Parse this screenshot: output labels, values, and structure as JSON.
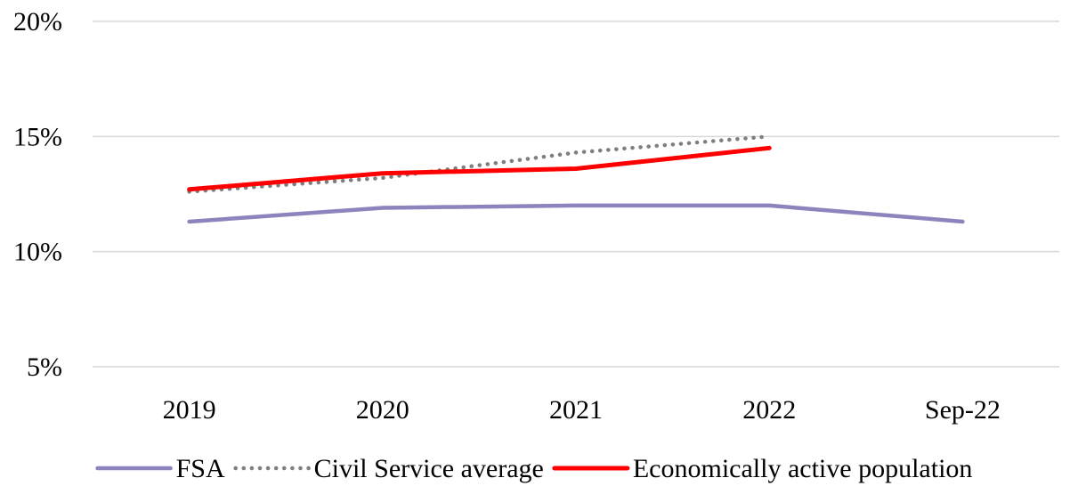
{
  "chart_data": {
    "type": "line",
    "categories": [
      "2019",
      "2020",
      "2021",
      "2022",
      "Sep-22"
    ],
    "ylim": [
      5,
      20
    ],
    "yticks": [
      5,
      10,
      15,
      20
    ],
    "ytick_labels": [
      "5%",
      "10%",
      "15%",
      "20%"
    ],
    "grid": true,
    "legend_position": "bottom",
    "series": [
      {
        "name": "FSA",
        "values": [
          11.3,
          11.9,
          12.0,
          12.0,
          11.3
        ],
        "color": "#8c84bd",
        "style": "solid"
      },
      {
        "name": "Civil Service average",
        "values": [
          12.6,
          13.2,
          14.3,
          15.0,
          null
        ],
        "color": "#7f7f7f",
        "style": "dotted"
      },
      {
        "name": "Economically active population",
        "values": [
          12.7,
          13.4,
          13.6,
          14.5,
          null
        ],
        "color": "#ff0000",
        "style": "solid"
      }
    ]
  }
}
